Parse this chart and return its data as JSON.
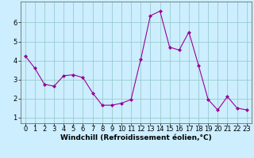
{
  "x": [
    0,
    1,
    2,
    3,
    4,
    5,
    6,
    7,
    8,
    9,
    10,
    11,
    12,
    13,
    14,
    15,
    16,
    17,
    18,
    19,
    20,
    21,
    22,
    23
  ],
  "y": [
    4.25,
    3.6,
    2.75,
    2.65,
    3.2,
    3.25,
    3.1,
    2.3,
    1.65,
    1.65,
    1.75,
    1.95,
    4.05,
    6.35,
    6.6,
    4.7,
    4.55,
    5.5,
    3.75,
    1.95,
    1.4,
    2.1,
    1.5,
    1.4
  ],
  "line_color": "#990099",
  "marker": "D",
  "marker_size": 2,
  "bg_color": "#cceeff",
  "grid_color": "#99cccc",
  "xlabel": "Windchill (Refroidissement éolien,°C)",
  "xlabel_fontsize": 6.5,
  "tick_fontsize": 6,
  "ylim": [
    0.7,
    7.1
  ],
  "xlim": [
    -0.5,
    23.5
  ],
  "yticks": [
    1,
    2,
    3,
    4,
    5,
    6
  ],
  "xticks": [
    0,
    1,
    2,
    3,
    4,
    5,
    6,
    7,
    8,
    9,
    10,
    11,
    12,
    13,
    14,
    15,
    16,
    17,
    18,
    19,
    20,
    21,
    22,
    23
  ],
  "xtick_labels": [
    "0",
    "1",
    "2",
    "3",
    "4",
    "5",
    "6",
    "7",
    "8",
    "9",
    "10",
    "11",
    "12",
    "13",
    "14",
    "15",
    "16",
    "17",
    "18",
    "19",
    "20",
    "21",
    "22",
    "23"
  ]
}
